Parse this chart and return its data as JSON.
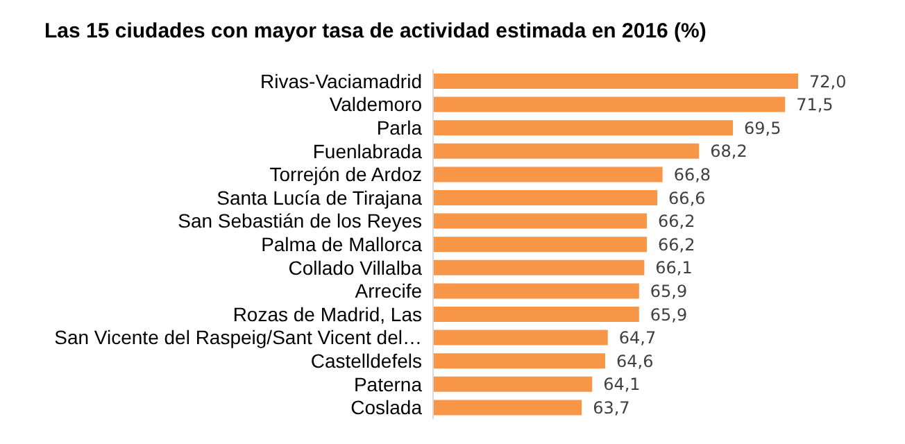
{
  "chart_data": {
    "type": "bar",
    "orientation": "horizontal",
    "title": "Las 15 ciudades con mayor tasa de actividad estimada en 2016 (%)",
    "categories": [
      "Rivas-Vaciamadrid",
      "Valdemoro",
      "Parla",
      "Fuenlabrada",
      "Torrejón de Ardoz",
      "Santa Lucía de Tirajana",
      "San Sebastián de los Reyes",
      "Palma de Mallorca",
      "Collado Villalba",
      "Arrecife",
      "Rozas de Madrid, Las",
      "San Vicente del Raspeig/Sant Vicent del…",
      "Castelldefels",
      "Paterna",
      "Coslada"
    ],
    "values": [
      72.0,
      71.5,
      69.5,
      68.2,
      66.8,
      66.6,
      66.2,
      66.2,
      66.1,
      65.9,
      65.9,
      64.7,
      64.6,
      64.1,
      63.7
    ],
    "value_labels": [
      "72,0",
      "71,5",
      "69,5",
      "68,2",
      "66,8",
      "66,6",
      "66,2",
      "66,2",
      "66,1",
      "65,9",
      "65,9",
      "64,7",
      "64,6",
      "64,1",
      "63,7"
    ],
    "color": "#f79646",
    "xlim": [
      58,
      72
    ],
    "tick_labels": "y",
    "grid": false,
    "legend": false
  }
}
